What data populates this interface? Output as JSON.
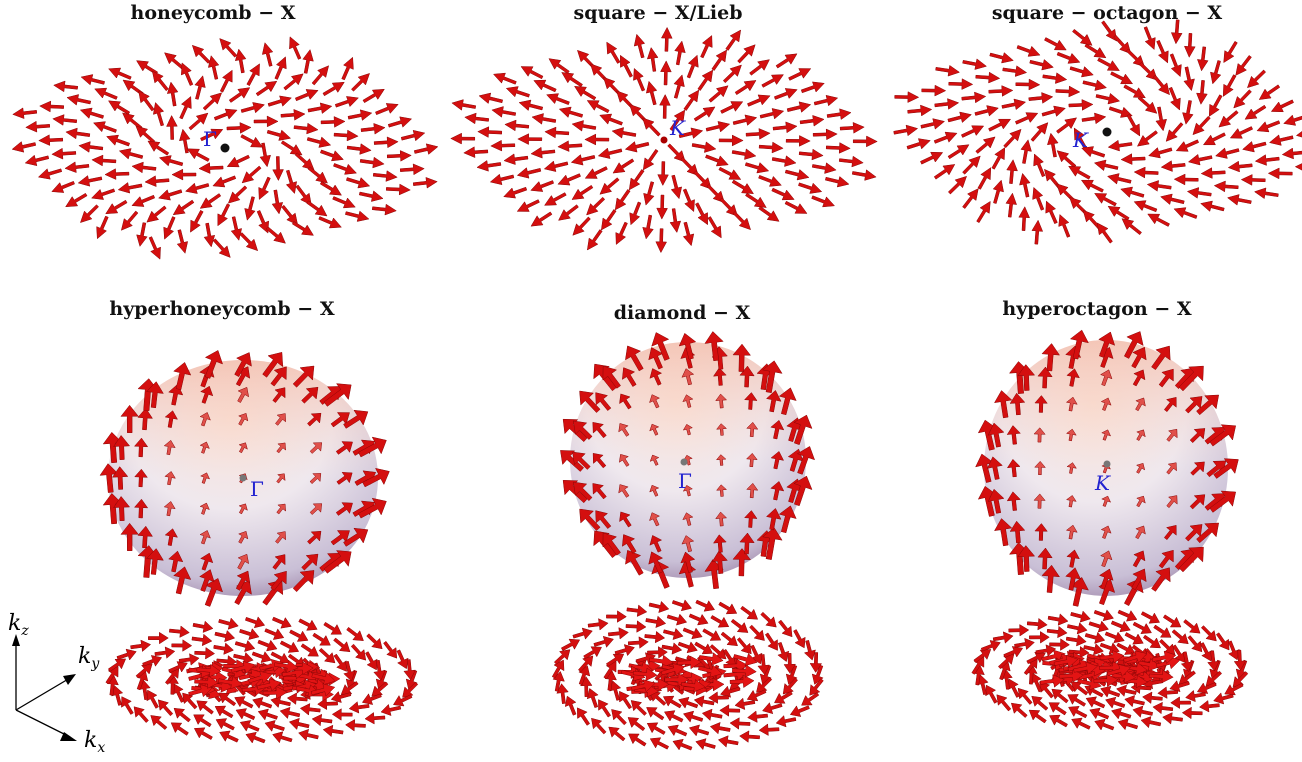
{
  "panels": [
    {
      "title": "honeycomb − X",
      "point": "Γ"
    },
    {
      "title": "square − X/Lieb",
      "point": "K"
    },
    {
      "title": "square − octagon − X",
      "point": "K"
    },
    {
      "title": "hyperhoneycomb − X",
      "point": "Γ"
    },
    {
      "title": "diamond − X",
      "point": "Γ"
    },
    {
      "title": "hyperoctagon − X",
      "point": "K"
    }
  ],
  "axes": {
    "z": "k",
    "z_sub": "z",
    "y": "k",
    "y_sub": "y",
    "x": "k",
    "x_sub": "x"
  },
  "colors": {
    "arrow": "#d40f0f",
    "arrow_dark": "#8a0606",
    "label": "#2323d0",
    "sphere_top": "#f3c2b0",
    "sphere_bottom": "#8e6f96"
  }
}
